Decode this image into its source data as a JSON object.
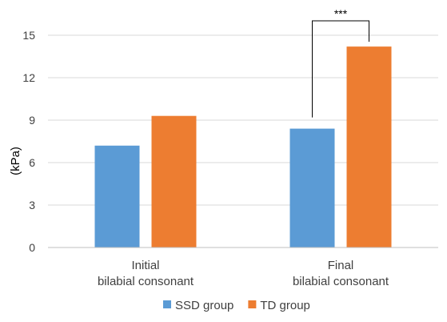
{
  "chart_data": {
    "type": "bar",
    "title": "",
    "ylabel": "(kPa)",
    "xlabel": "",
    "ylim": [
      0,
      15
    ],
    "yticks": [
      0,
      3,
      6,
      9,
      12,
      15
    ],
    "grid": true,
    "legend_position": "bottom",
    "categories": [
      [
        "Initial",
        "bilabial consonant"
      ],
      [
        "Final",
        "bilabial consonant"
      ]
    ],
    "series": [
      {
        "name": "SSD group",
        "color": "#5b9bd5",
        "values": [
          7.2,
          8.4
        ]
      },
      {
        "name": "TD group",
        "color": "#ed7d31",
        "values": [
          9.3,
          14.2
        ]
      }
    ],
    "annotations": [
      {
        "label": "***",
        "category_index": 1
      }
    ]
  }
}
